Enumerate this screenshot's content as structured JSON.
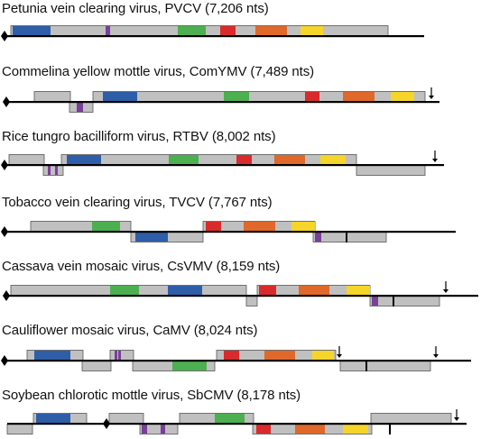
{
  "colors": {
    "orf": "#c0c0c0",
    "border": "#555555",
    "line": "#000000",
    "blue": "#2e5ea8",
    "purple": "#7a3f98",
    "green": "#4caf50",
    "red": "#d92b2b",
    "orange": "#e0682a",
    "yellow": "#f5d52a"
  },
  "genomes": [
    {
      "title": "Petunia vein clearing virus, PVCV (7,206 nts)",
      "line": [
        8,
        470
      ],
      "diamonds": [
        5
      ],
      "arrows": [],
      "orfs": [
        {
          "row": "top",
          "span": [
            12,
            430
          ],
          "domains": [
            {
              "color": "blue",
              "span": [
                14,
                56
              ]
            },
            {
              "color": "purple",
              "span": [
                117,
                122
              ]
            },
            {
              "color": "green",
              "span": [
                197,
                228
              ]
            },
            {
              "color": "red",
              "span": [
                244,
                261
              ]
            },
            {
              "color": "orange",
              "span": [
                283,
                318
              ]
            },
            {
              "color": "yellow",
              "span": [
                333,
                358
              ]
            }
          ]
        }
      ]
    },
    {
      "title": "Commelina yellow mottle virus, ComYMV (7,489 nts)",
      "line": [
        8,
        487
      ],
      "diamonds": [
        7
      ],
      "arrows": [
        478
      ],
      "orfs": [
        {
          "row": "top",
          "span": [
            38,
            78
          ],
          "domains": []
        },
        {
          "row": "bottom",
          "span": [
            77,
            103
          ],
          "domains": [
            {
              "color": "purple",
              "span": [
                85,
                92
              ]
            }
          ]
        },
        {
          "row": "top",
          "span": [
            103,
            471
          ],
          "domains": [
            {
              "color": "blue",
              "span": [
                114,
                152
              ]
            },
            {
              "color": "green",
              "span": [
                248,
                276
              ]
            },
            {
              "color": "red",
              "span": [
                338,
                354
              ]
            },
            {
              "color": "orange",
              "span": [
                380,
                415
              ]
            },
            {
              "color": "yellow",
              "span": [
                433,
                459
              ]
            }
          ]
        }
      ]
    },
    {
      "title": "Rice tungro bacilliform virus, RTBV (8,002 nts)",
      "line": [
        8,
        492
      ],
      "diamonds": [
        5
      ],
      "arrows": [
        482
      ],
      "orfs": [
        {
          "row": "top",
          "span": [
            10,
            49
          ],
          "domains": []
        },
        {
          "row": "bottom",
          "span": [
            48,
            70
          ],
          "domains": [
            {
              "color": "purple",
              "span": [
                53,
                56
              ]
            },
            {
              "color": "purple",
              "span": [
                61,
                64
              ]
            }
          ]
        },
        {
          "row": "top",
          "span": [
            68,
            395
          ],
          "domains": [
            {
              "color": "blue",
              "span": [
                74,
                112
              ]
            },
            {
              "color": "green",
              "span": [
                187,
                220
              ]
            },
            {
              "color": "red",
              "span": [
                262,
                279
              ]
            },
            {
              "color": "orange",
              "span": [
                304,
                338
              ]
            },
            {
              "color": "yellow",
              "span": [
                355,
                383
              ]
            }
          ]
        },
        {
          "row": "bottom",
          "span": [
            395,
            471
          ],
          "domains": []
        }
      ]
    },
    {
      "title": "Tobacco vein clearing virus, TVCV (7,767 nts)",
      "line": [
        8,
        505
      ],
      "diamonds": [
        5
      ],
      "arrows": [],
      "orfs": [
        {
          "row": "top",
          "span": [
            34,
            145
          ],
          "domains": [
            {
              "color": "green",
              "span": [
                102,
                133
              ]
            }
          ]
        },
        {
          "row": "bottom",
          "span": [
            145,
            225
          ],
          "domains": [
            {
              "color": "blue",
              "span": [
                150,
                186
              ]
            }
          ]
        },
        {
          "row": "top",
          "span": [
            225,
            349
          ],
          "domains": [
            {
              "color": "red",
              "span": [
                228,
                245
              ]
            },
            {
              "color": "orange",
              "span": [
                270,
                305
              ]
            },
            {
              "color": "yellow",
              "span": [
                323,
                349
              ]
            }
          ]
        },
        {
          "row": "bottom",
          "span": [
            347,
            428
          ],
          "domains": [
            {
              "color": "purple",
              "span": [
                349,
                356
              ]
            }
          ]
        }
      ]
    },
    {
      "title": "Cassava vein mosaic virus, CsVMV (8,159 nts)",
      "line": [
        8,
        530
      ],
      "diamonds": [
        7
      ],
      "arrows": [
        494
      ],
      "orfs": [
        {
          "row": "top",
          "span": [
            12,
            273
          ],
          "domains": [
            {
              "color": "green",
              "span": [
                122,
                154
              ]
            },
            {
              "color": "blue",
              "span": [
                186,
                224
              ]
            }
          ]
        },
        {
          "row": "bottom",
          "span": [
            273,
            285
          ],
          "domains": []
        },
        {
          "row": "top",
          "span": [
            285,
            410
          ],
          "domains": [
            {
              "color": "red",
              "span": [
                287,
                306
              ]
            },
            {
              "color": "orange",
              "span": [
                331,
                365
              ]
            },
            {
              "color": "yellow",
              "span": [
                384,
                410
              ]
            }
          ]
        },
        {
          "row": "bottom",
          "span": [
            410,
            487
          ],
          "domains": [
            {
              "color": "purple",
              "span": [
                412,
                419
              ]
            }
          ]
        }
      ]
    },
    {
      "title": "Cauliflower mosaic virus, CaMV (8,024 nts)",
      "line": [
        8,
        522
      ],
      "diamonds": [
        5
      ],
      "arrows": [
        376,
        483
      ],
      "orfs": [
        {
          "row": "top",
          "span": [
            30,
            92
          ],
          "domains": [
            {
              "color": "blue",
              "span": [
                38,
                78
              ]
            }
          ]
        },
        {
          "row": "bottom",
          "span": [
            91,
            123
          ],
          "domains": []
        },
        {
          "row": "top",
          "span": [
            122,
            148
          ],
          "domains": [
            {
              "color": "purple",
              "span": [
                127,
                130
              ]
            },
            {
              "color": "purple",
              "span": [
                131,
                134
              ]
            }
          ]
        },
        {
          "row": "bottom",
          "span": [
            147,
            238
          ],
          "domains": [
            {
              "color": "green",
              "span": [
                191,
                229
              ]
            }
          ]
        },
        {
          "row": "top",
          "span": [
            240,
            372
          ],
          "domains": [
            {
              "color": "red",
              "span": [
                248,
                265
              ]
            },
            {
              "color": "orange",
              "span": [
                293,
                327
              ]
            },
            {
              "color": "yellow",
              "span": [
                346,
                370
              ]
            }
          ]
        },
        {
          "row": "bottom",
          "span": [
            377,
            477
          ],
          "domains": []
        }
      ]
    },
    {
      "title": "Soybean chlorotic mottle virus, SbCMV (8,178 nts)",
      "line": [
        8,
        517
      ],
      "diamonds": [
        118
      ],
      "arrows": [
        506
      ],
      "orfs": [
        {
          "row": "bottom",
          "span": [
            8,
            36
          ],
          "domains": []
        },
        {
          "row": "top",
          "span": [
            37,
            96
          ],
          "domains": [
            {
              "color": "blue",
              "span": [
                40,
                78
              ]
            }
          ]
        },
        {
          "row": "top",
          "span": [
            121,
            159
          ],
          "domains": []
        },
        {
          "row": "bottom",
          "span": [
            155,
            197
          ],
          "domains": [
            {
              "color": "purple",
              "span": [
                157,
                163
              ]
            },
            {
              "color": "purple",
              "span": [
                178,
                183
              ]
            }
          ]
        },
        {
          "row": "top",
          "span": [
            199,
            281
          ],
          "domains": [
            {
              "color": "green",
              "span": [
                238,
                271
              ]
            }
          ]
        },
        {
          "row": "bottom",
          "span": [
            280,
            412
          ],
          "domains": [
            {
              "color": "red",
              "span": [
                284,
                300
              ]
            },
            {
              "color": "orange",
              "span": [
                327,
                360
              ]
            },
            {
              "color": "yellow",
              "span": [
                380,
                408
              ]
            }
          ]
        },
        {
          "row": "top",
          "span": [
            411,
            500
          ],
          "domains": []
        }
      ]
    }
  ]
}
